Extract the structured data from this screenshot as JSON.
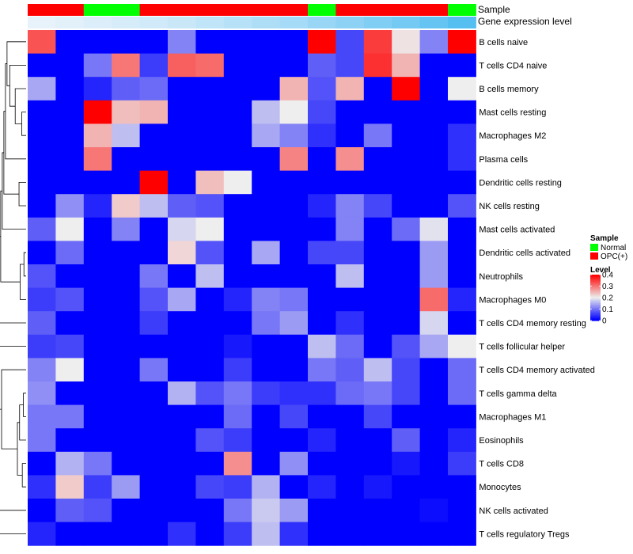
{
  "chart_data": {
    "type": "heatmap",
    "annotation_labels": [
      "Sample",
      "Gene expression level"
    ],
    "sample_groups": [
      "OPC(+)",
      "OPC(+)",
      "Normal",
      "Normal",
      "OPC(+)",
      "OPC(+)",
      "OPC(+)",
      "OPC(+)",
      "OPC(+)",
      "OPC(+)",
      "Normal",
      "OPC(+)",
      "OPC(+)",
      "OPC(+)",
      "OPC(+)",
      "Normal"
    ],
    "gene_expression_level": [
      0.02,
      0.04,
      0.06,
      0.08,
      0.1,
      0.12,
      0.15,
      0.18,
      0.21,
      0.24,
      0.28,
      0.32,
      0.36,
      0.4,
      0.45,
      0.5
    ],
    "rows": [
      "B cells naive",
      "T cells CD4 naive",
      "B cells memory",
      "Mast cells resting",
      "Macrophages M2",
      "Plasma cells",
      "Dendritic cells resting",
      "NK cells resting",
      "Mast cells activated",
      "Dendritic cells activated",
      "Neutrophils",
      "Macrophages M0",
      "T cells CD4 memory resting",
      "T cells follicular helper",
      "T cells CD4 memory activated",
      "T cells gamma delta",
      "Macrophages M1",
      "Eosinophils",
      "T cells CD8",
      "Monocytes",
      "NK cells activated",
      "T cells regulatory  Tregs"
    ],
    "values": [
      [
        0.33,
        0.0,
        0.0,
        0.0,
        0.0,
        0.11,
        0.0,
        0.0,
        0.0,
        0.0,
        0.41,
        0.06,
        0.35,
        0.21,
        0.11,
        0.41
      ],
      [
        0.0,
        0.0,
        0.1,
        0.3,
        0.05,
        0.32,
        0.31,
        0.0,
        0.0,
        0.0,
        0.08,
        0.06,
        0.36,
        0.25,
        0.0,
        0.0
      ],
      [
        0.14,
        0.0,
        0.03,
        0.08,
        0.09,
        0.0,
        0.0,
        0.0,
        0.0,
        0.25,
        0.07,
        0.25,
        0.0,
        0.43,
        0.0,
        0.2
      ],
      [
        0.0,
        0.0,
        0.42,
        0.24,
        0.25,
        0.0,
        0.0,
        0.0,
        0.16,
        0.2,
        0.06,
        0.0,
        0.0,
        0.0,
        0.0,
        0.0
      ],
      [
        0.0,
        0.0,
        0.25,
        0.16,
        0.0,
        0.0,
        0.0,
        0.0,
        0.14,
        0.11,
        0.04,
        0.0,
        0.1,
        0.0,
        0.0,
        0.04
      ],
      [
        0.0,
        0.0,
        0.3,
        0.0,
        0.0,
        0.0,
        0.0,
        0.0,
        0.0,
        0.29,
        0.0,
        0.28,
        0.0,
        0.0,
        0.0,
        0.04
      ],
      [
        0.0,
        0.0,
        0.0,
        0.0,
        0.4,
        0.0,
        0.24,
        0.2,
        0.0,
        0.0,
        0.0,
        0.0,
        0.0,
        0.0,
        0.0,
        0.0
      ],
      [
        0.0,
        0.12,
        0.03,
        0.23,
        0.16,
        0.08,
        0.07,
        0.0,
        0.0,
        0.0,
        0.03,
        0.11,
        0.06,
        0.0,
        0.0,
        0.07
      ],
      [
        0.08,
        0.2,
        0.0,
        0.11,
        0.0,
        0.18,
        0.2,
        0.0,
        0.0,
        0.0,
        0.0,
        0.11,
        0.0,
        0.09,
        0.19,
        0.0
      ],
      [
        0.0,
        0.09,
        0.0,
        0.0,
        0.0,
        0.22,
        0.07,
        0.0,
        0.14,
        0.0,
        0.06,
        0.06,
        0.0,
        0.0,
        0.13,
        0.0
      ],
      [
        0.07,
        0.0,
        0.0,
        0.0,
        0.1,
        0.0,
        0.16,
        0.0,
        0.0,
        0.0,
        0.0,
        0.16,
        0.0,
        0.0,
        0.13,
        0.0
      ],
      [
        0.05,
        0.07,
        0.0,
        0.0,
        0.07,
        0.14,
        0.0,
        0.03,
        0.11,
        0.1,
        0.0,
        0.0,
        0.0,
        0.0,
        0.31,
        0.03
      ],
      [
        0.08,
        0.0,
        0.0,
        0.0,
        0.05,
        0.0,
        0.0,
        0.0,
        0.1,
        0.13,
        0.0,
        0.04,
        0.0,
        0.0,
        0.18,
        0.0
      ],
      [
        0.05,
        0.06,
        0.0,
        0.0,
        0.0,
        0.0,
        0.0,
        0.02,
        0.0,
        0.0,
        0.16,
        0.09,
        0.0,
        0.07,
        0.14,
        0.2
      ],
      [
        0.11,
        0.2,
        0.0,
        0.0,
        0.1,
        0.0,
        0.0,
        0.05,
        0.0,
        0.0,
        0.1,
        0.08,
        0.16,
        0.06,
        0.0,
        0.09
      ],
      [
        0.12,
        0.0,
        0.0,
        0.0,
        0.0,
        0.15,
        0.07,
        0.1,
        0.05,
        0.04,
        0.04,
        0.09,
        0.1,
        0.06,
        0.0,
        0.09
      ],
      [
        0.1,
        0.1,
        0.0,
        0.0,
        0.0,
        0.0,
        0.0,
        0.09,
        0.0,
        0.06,
        0.0,
        0.0,
        0.06,
        0.0,
        0.0,
        0.0
      ],
      [
        0.1,
        0.0,
        0.0,
        0.0,
        0.0,
        0.0,
        0.07,
        0.05,
        0.0,
        0.0,
        0.03,
        0.0,
        0.0,
        0.08,
        0.0,
        0.03
      ],
      [
        0.0,
        0.15,
        0.1,
        0.0,
        0.0,
        0.0,
        0.0,
        0.28,
        0.0,
        0.12,
        0.0,
        0.0,
        0.0,
        0.02,
        0.0,
        0.05
      ],
      [
        0.04,
        0.23,
        0.05,
        0.13,
        0.0,
        0.0,
        0.06,
        0.05,
        0.15,
        0.0,
        0.03,
        0.0,
        0.02,
        0.0,
        0.0,
        0.0
      ],
      [
        0.0,
        0.08,
        0.07,
        0.0,
        0.0,
        0.0,
        0.0,
        0.1,
        0.17,
        0.13,
        0.0,
        0.0,
        0.0,
        0.0,
        0.01,
        0.0
      ],
      [
        0.03,
        0.0,
        0.0,
        0.0,
        0.0,
        0.04,
        0.0,
        0.05,
        0.16,
        0.04,
        0.0,
        0.0,
        0.0,
        0.0,
        0.0,
        0.0
      ]
    ],
    "value_range": [
      0,
      0.4
    ],
    "colors": {
      "low": "#0000ff",
      "mid": "#eeeeee",
      "high": "#ff0000",
      "normal": "#00ff00",
      "opc": "#ff0000",
      "level_low": "#e8f2fa",
      "level_high": "#56bff1",
      "dendrogram": "#000000"
    },
    "legend": {
      "sample_title": "Sample",
      "sample_entries": [
        {
          "label": "Normal",
          "color": "#00ff00"
        },
        {
          "label": "OPC(+)",
          "color": "#ff0000"
        }
      ],
      "level_title": "Level",
      "level_ticks": [
        "0.4",
        "0.3",
        "0.2",
        "0.1",
        "0"
      ],
      "level_tick_values": [
        0.4,
        0.3,
        0.2,
        0.1,
        0
      ]
    },
    "dendrogram_merges": [
      [
        9,
        10
      ],
      [
        14,
        15
      ],
      [
        16,
        17
      ],
      [
        3,
        4
      ],
      [
        18,
        19
      ],
      [
        20,
        21
      ],
      [
        8,
        9
      ],
      [
        12,
        13
      ],
      [
        5,
        6
      ],
      [
        11,
        12
      ],
      [
        2,
        3
      ],
      [
        1,
        2
      ],
      [
        0,
        1
      ],
      [
        7,
        8
      ]
    ],
    "dendrogram_heights": [
      0.04,
      0.05,
      0.07,
      0.08,
      0.09,
      0.1,
      0.11,
      0.12,
      0.13,
      0.16,
      0.2,
      0.3,
      0.35,
      0.45
    ]
  }
}
